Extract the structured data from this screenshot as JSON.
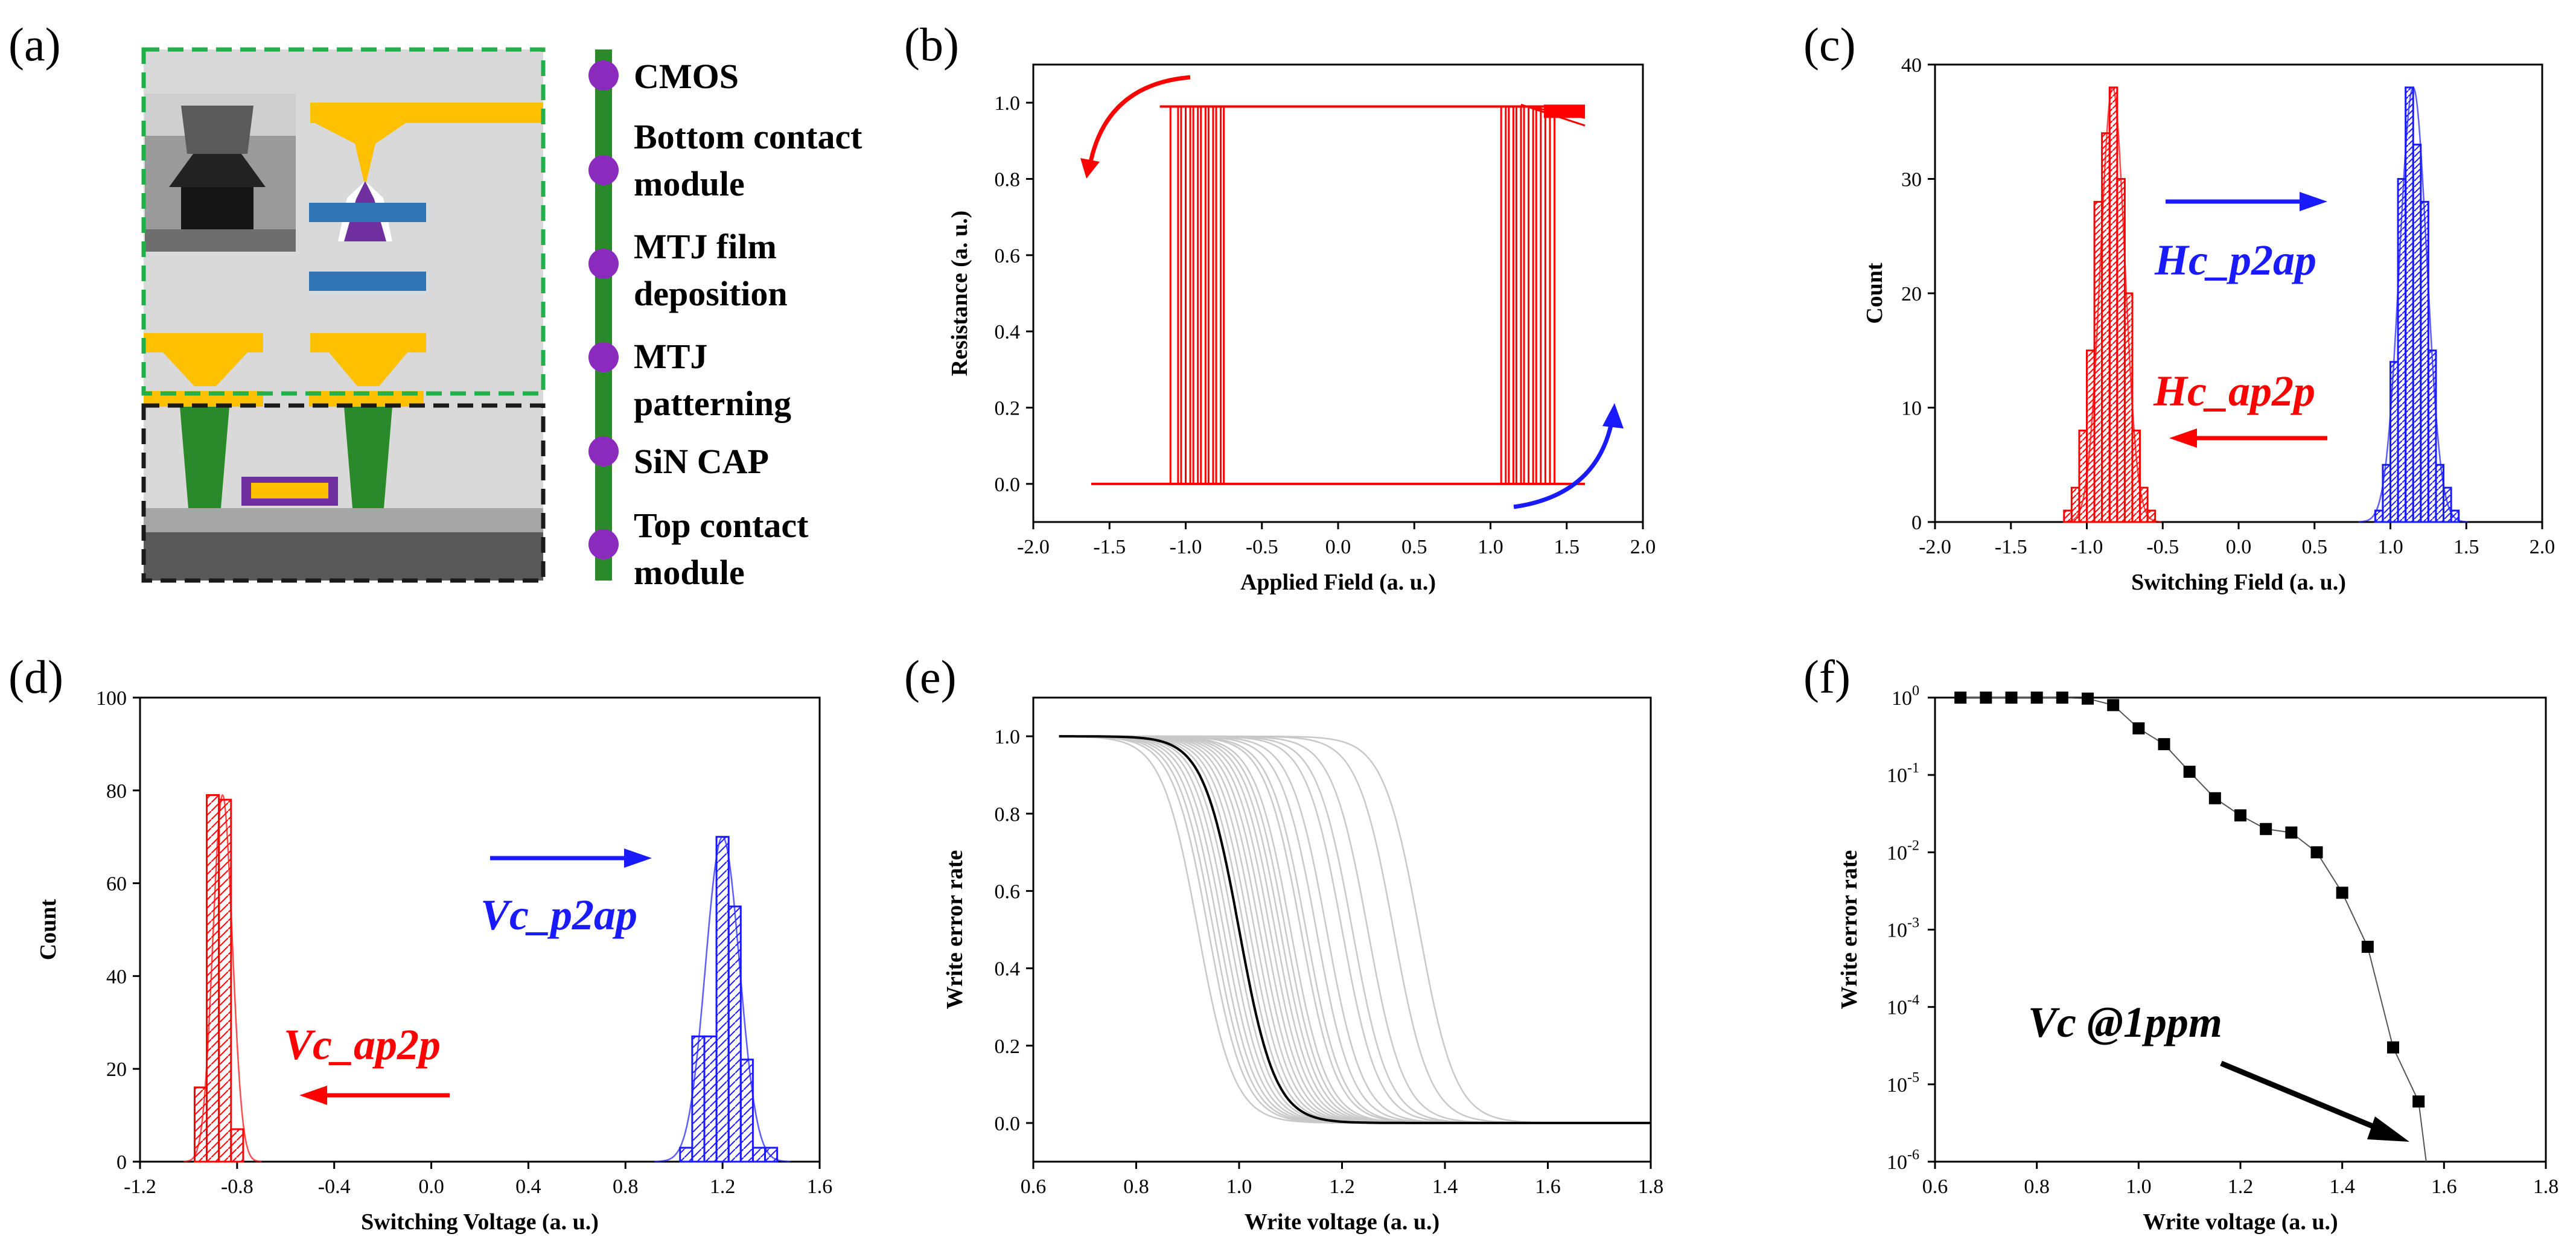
{
  "colors": {
    "red": "#ff0000",
    "blue": "#1a1aff",
    "black": "#000000",
    "grey": "#c8c8c8",
    "gold": "#ffc000",
    "green": "#2a8a2a",
    "purple": "#7030a0",
    "teal": "#2e75b6"
  },
  "panel_labels": [
    "(a)",
    "(b)",
    "(c)",
    "(d)",
    "(e)",
    "(f)"
  ],
  "flow_steps": [
    "CMOS",
    "Bottom contact",
    "module",
    "MTJ film",
    "deposition",
    "MTJ",
    "patterning",
    "SiN CAP",
    "Top contact",
    "module"
  ],
  "chart_data": [
    {
      "id": "b",
      "type": "line",
      "title": "",
      "xlabel": "Applied Field (a. u.)",
      "ylabel": "Resistance (a. u.)",
      "xlim": [
        -2.0,
        2.0
      ],
      "ylim": [
        -0.1,
        1.1
      ],
      "xticks": [
        -2.0,
        -1.5,
        -1.0,
        -0.5,
        0.0,
        0.5,
        1.0,
        1.5,
        2.0
      ],
      "yticks": [
        0.0,
        0.2,
        0.4,
        0.6,
        0.8,
        1.0
      ],
      "xtick_labels": [
        "-2.0",
        "-1.5",
        "-1.0",
        "-0.5",
        "0.0",
        "0.5",
        "1.0",
        "1.5",
        "2.0"
      ],
      "ytick_labels": [
        "0.0",
        "0.2",
        "0.4",
        "0.6",
        "0.8",
        "1.0"
      ],
      "low_state": 0.0,
      "high_state": 0.99,
      "field_range": [
        -1.62,
        1.62
      ],
      "switch_ap2p": [
        -1.1,
        -1.05,
        -1.03,
        -1.0,
        -0.97,
        -0.95,
        -0.92,
        -0.9,
        -0.87,
        -0.85,
        -0.82,
        -0.8,
        -0.77,
        -0.75
      ],
      "switch_p2ap": [
        1.07,
        1.1,
        1.12,
        1.15,
        1.17,
        1.2,
        1.22,
        1.25,
        1.28,
        1.3,
        1.33,
        1.36,
        1.39,
        1.42
      ]
    },
    {
      "id": "c",
      "type": "histogram",
      "xlabel": "Switching Field (a. u.)",
      "ylabel": "Count",
      "xlim": [
        -2.0,
        2.0
      ],
      "ylim": [
        0,
        40
      ],
      "xticks": [
        -2.0,
        -1.5,
        -1.0,
        -0.5,
        0.0,
        0.5,
        1.0,
        1.5,
        2.0
      ],
      "yticks": [
        0,
        10,
        20,
        30,
        40
      ],
      "xtick_labels": [
        "-2.0",
        "-1.5",
        "-1.0",
        "-0.5",
        "0.0",
        "0.5",
        "1.0",
        "1.5",
        "2.0"
      ],
      "ytick_labels": [
        "0",
        "10",
        "20",
        "30",
        "40"
      ],
      "bin_width": 0.05,
      "series": [
        {
          "name": "Hc_ap2p",
          "color": "red",
          "bin_starts": [
            -1.15,
            -1.1,
            -1.05,
            -1.0,
            -0.95,
            -0.9,
            -0.85,
            -0.8,
            -0.75,
            -0.7,
            -0.65,
            -0.6
          ],
          "counts": [
            1,
            3,
            8,
            15,
            28,
            34,
            38,
            30,
            20,
            8,
            3,
            1
          ],
          "mean": -0.83,
          "sigma": 0.08
        },
        {
          "name": "Hc_p2ap",
          "color": "blue",
          "bin_starts": [
            0.9,
            0.95,
            1.0,
            1.05,
            1.1,
            1.15,
            1.2,
            1.25,
            1.3,
            1.35,
            1.4
          ],
          "counts": [
            1,
            5,
            14,
            30,
            38,
            33,
            28,
            15,
            5,
            3,
            1
          ],
          "mean": 1.15,
          "sigma": 0.09
        }
      ]
    },
    {
      "id": "d",
      "type": "histogram",
      "xlabel": "Switching Voltage (a. u.)",
      "ylabel": "Count",
      "xlim": [
        -1.2,
        1.6
      ],
      "ylim": [
        0,
        100
      ],
      "xticks": [
        -1.2,
        -0.8,
        -0.4,
        0.0,
        0.4,
        0.8,
        1.2,
        1.6
      ],
      "yticks": [
        0,
        20,
        40,
        60,
        80,
        100
      ],
      "xtick_labels": [
        "-1.2",
        "-0.8",
        "-0.4",
        "0.0",
        "0.4",
        "0.8",
        "1.2",
        "1.6"
      ],
      "ytick_labels": [
        "0",
        "20",
        "40",
        "60",
        "80",
        "100"
      ],
      "bin_width": 0.05,
      "series": [
        {
          "name": "Vc_ap2p",
          "color": "red",
          "bin_starts": [
            -0.975,
            -0.925,
            -0.875,
            -0.825,
            -0.775
          ],
          "counts": [
            16,
            79,
            78,
            7,
            0
          ],
          "mean": -0.86,
          "sigma": 0.04
        },
        {
          "name": "Vc_p2ap",
          "color": "blue",
          "bin_starts": [
            1.025,
            1.075,
            1.125,
            1.175,
            1.225,
            1.275,
            1.325,
            1.375
          ],
          "counts": [
            3,
            27,
            27,
            70,
            55,
            22,
            3,
            3
          ],
          "mean": 1.2,
          "sigma": 0.07
        }
      ]
    },
    {
      "id": "e",
      "type": "line",
      "xlabel": "Write voltage (a. u.)",
      "ylabel": "Write error rate",
      "xlim": [
        0.6,
        1.8
      ],
      "ylim": [
        -0.1,
        1.1
      ],
      "xticks": [
        0.6,
        0.8,
        1.0,
        1.2,
        1.4,
        1.6,
        1.8
      ],
      "yticks": [
        0.0,
        0.2,
        0.4,
        0.6,
        0.8,
        1.0
      ],
      "xtick_labels": [
        "0.6",
        "0.8",
        "1.0",
        "1.2",
        "1.4",
        "1.6",
        "1.8"
      ],
      "ytick_labels": [
        "0.0",
        "0.2",
        "0.4",
        "0.6",
        "0.8",
        "1.0"
      ],
      "x_range": [
        0.65,
        1.8
      ],
      "highlight_midpoint": 1.0,
      "grey_midpoints": [
        0.92,
        0.94,
        0.95,
        0.96,
        0.97,
        0.98,
        0.99,
        1.0,
        1.0,
        1.01,
        1.02,
        1.03,
        1.04,
        1.05,
        1.06,
        1.07,
        1.08,
        1.09,
        1.1,
        1.12,
        1.13,
        1.15,
        1.17,
        1.2,
        1.22,
        1.25,
        1.3,
        1.35
      ]
    },
    {
      "id": "f",
      "type": "scatter",
      "scale_y": "log",
      "xlabel": "Write voltage (a. u.)",
      "ylabel": "Write error rate",
      "xlim": [
        0.6,
        1.8
      ],
      "ylim": [
        1e-06,
        1
      ],
      "xticks": [
        0.6,
        0.8,
        1.0,
        1.2,
        1.4,
        1.6,
        1.8
      ],
      "xtick_labels": [
        "0.6",
        "0.8",
        "1.0",
        "1.2",
        "1.4",
        "1.6",
        "1.8"
      ],
      "ytick_exponents": [
        0,
        -1,
        -2,
        -3,
        -4,
        -5,
        -6
      ],
      "x": [
        0.65,
        0.7,
        0.75,
        0.8,
        0.85,
        0.9,
        0.95,
        1.0,
        1.05,
        1.1,
        1.15,
        1.2,
        1.25,
        1.3,
        1.35,
        1.4,
        1.45,
        1.5,
        1.55
      ],
      "y": [
        1.0,
        1.0,
        1.0,
        1.0,
        1.0,
        0.97,
        0.8,
        0.4,
        0.25,
        0.11,
        0.05,
        0.03,
        0.02,
        0.018,
        0.01,
        0.003,
        0.0006,
        3e-05,
        6e-06
      ],
      "annotation": "Vc @1ppm",
      "annotation_point": {
        "x": 1.55,
        "y": 1e-06
      },
      "fit_end": {
        "x": 1.565,
        "y": 1e-06
      }
    }
  ]
}
